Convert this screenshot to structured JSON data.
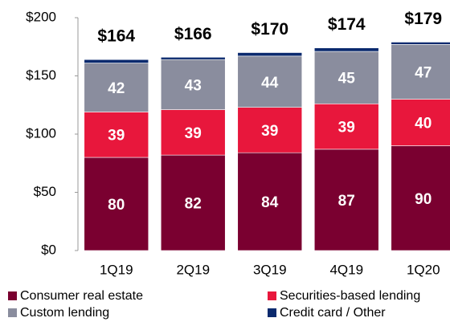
{
  "chart_data": {
    "type": "stacked_bar",
    "categories": [
      "1Q19",
      "2Q19",
      "3Q19",
      "4Q19",
      "1Q20"
    ],
    "series": [
      {
        "name": "Consumer real estate",
        "color": "#7a0030",
        "values": [
          80,
          82,
          84,
          87,
          90
        ]
      },
      {
        "name": "Securities-based lending",
        "color": "#e8173c",
        "values": [
          39,
          39,
          39,
          39,
          40
        ]
      },
      {
        "name": "Custom lending",
        "color": "#8a8d9e",
        "values": [
          42,
          43,
          44,
          45,
          47
        ]
      },
      {
        "name": "Credit card / Other",
        "color": "#0b2a6e",
        "values": [
          3,
          2,
          3,
          3,
          2
        ]
      }
    ],
    "totals": {
      "values": [
        164,
        166,
        170,
        174,
        179
      ],
      "value_labels": [
        "$164",
        "$166",
        "$170",
        "$174",
        "$179"
      ]
    },
    "ylim": [
      0,
      200
    ],
    "yticks": [
      {
        "value": 0,
        "label": "$0"
      },
      {
        "value": 50,
        "label": "$50"
      },
      {
        "value": 100,
        "label": "$100"
      },
      {
        "value": 150,
        "label": "$150"
      },
      {
        "value": 200,
        "label": "$200"
      }
    ]
  }
}
